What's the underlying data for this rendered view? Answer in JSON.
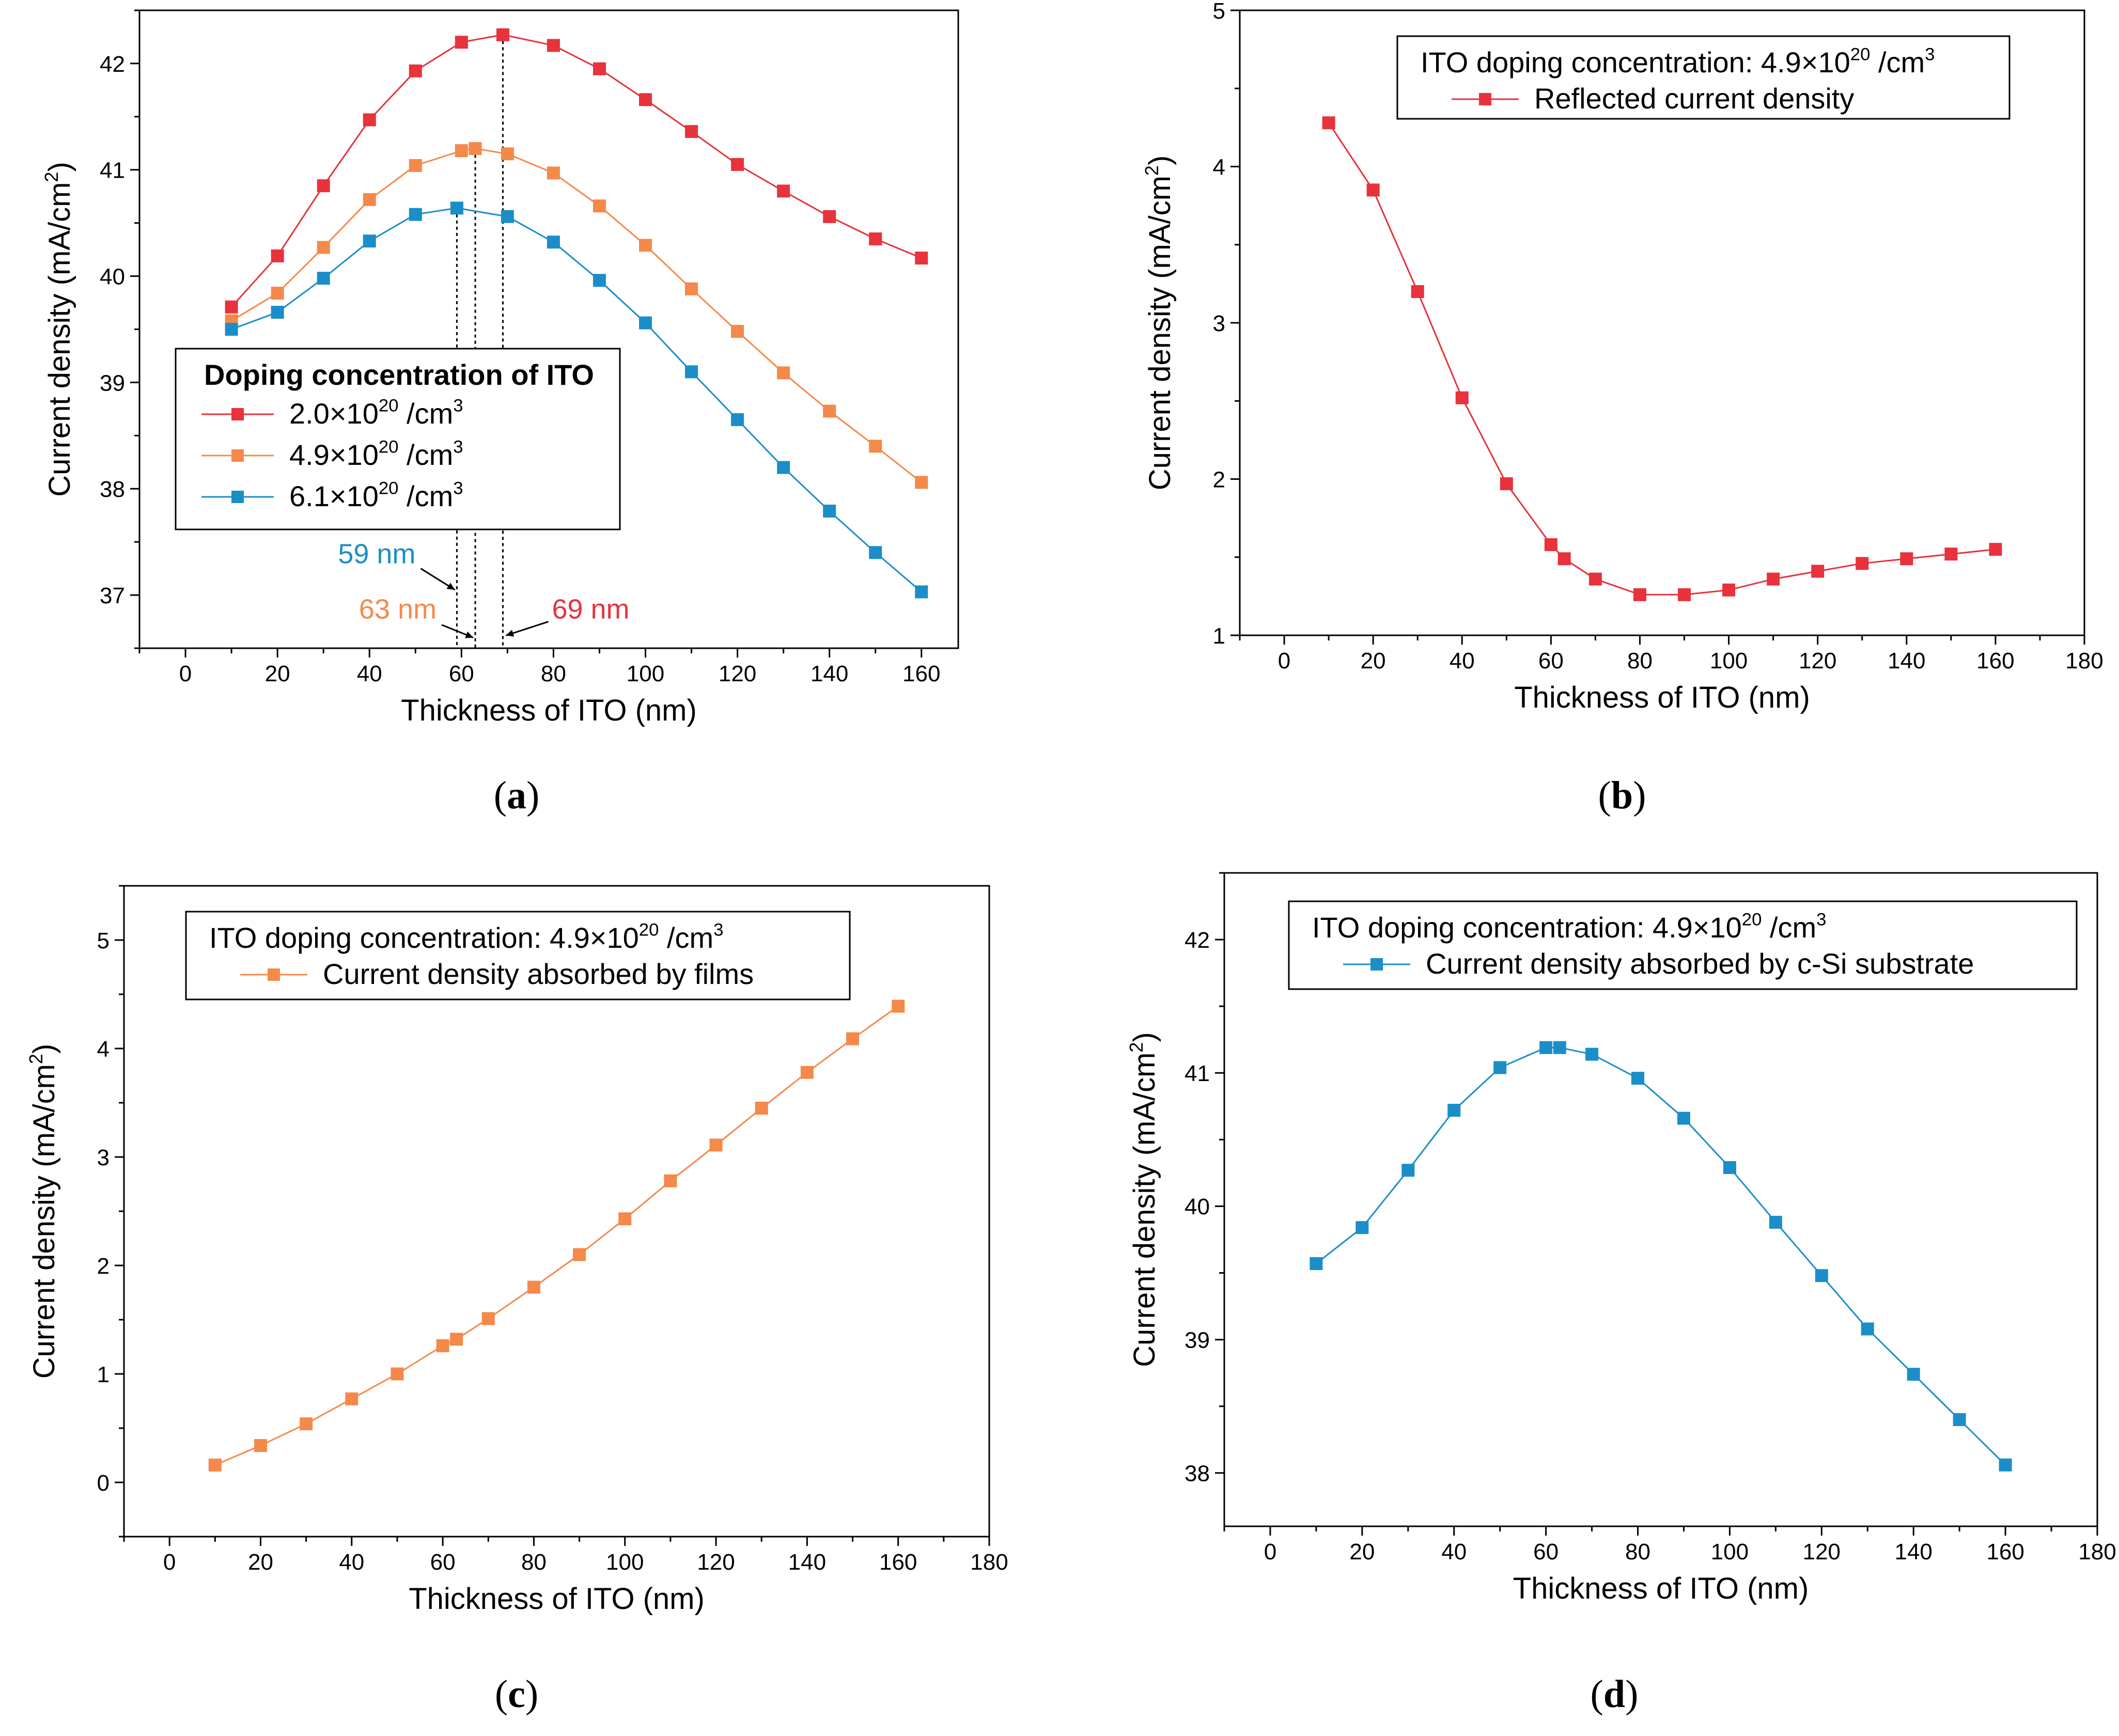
{
  "chart_data": [
    {
      "type": "line",
      "panel_label": "a",
      "xlabel": "Thickness of ITO (nm)",
      "ylabel": "Current density (mA/cm",
      "ylabel_sup": "2",
      "ylabel_close": ")",
      "xlim": [
        -10,
        168
      ],
      "ylim": [
        36.5,
        42.5
      ],
      "xticks": [
        0,
        20,
        40,
        60,
        80,
        100,
        120,
        140,
        160
      ],
      "yticks": [
        37,
        38,
        39,
        40,
        41,
        42
      ],
      "legend_title": "Doping concentration of ITO",
      "x": [
        10,
        20,
        30,
        40,
        50,
        60,
        69,
        80,
        90,
        100,
        110,
        120,
        130,
        140,
        150,
        160
      ],
      "series": [
        {
          "name": "2.0×10²⁰ /cm³",
          "legend_base": "2.0×10",
          "legend_exp": "20",
          "legend_unit": " /cm",
          "legend_unit_exp": "3",
          "color": "#e8323c",
          "x": [
            10,
            20,
            30,
            40,
            50,
            60,
            69,
            80,
            90,
            100,
            110,
            120,
            130,
            140,
            150,
            160
          ],
          "values": [
            39.71,
            40.19,
            40.85,
            41.47,
            41.93,
            42.2,
            42.27,
            42.17,
            41.95,
            41.66,
            41.36,
            41.05,
            40.8,
            40.56,
            40.35,
            40.17
          ]
        },
        {
          "name": "4.9×10²⁰ /cm³",
          "legend_base": "4.9×10",
          "legend_exp": "20",
          "legend_unit": " /cm",
          "legend_unit_exp": "3",
          "color": "#f5894a",
          "x": [
            10,
            20,
            30,
            40,
            50,
            60,
            63,
            70,
            80,
            90,
            100,
            110,
            120,
            130,
            140,
            150,
            160
          ],
          "values": [
            39.58,
            39.84,
            40.27,
            40.72,
            41.04,
            41.18,
            41.2,
            41.15,
            40.97,
            40.66,
            40.29,
            39.88,
            39.48,
            39.09,
            38.73,
            38.4,
            38.06
          ]
        },
        {
          "name": "6.1×10²⁰ /cm³",
          "legend_base": "6.1×10",
          "legend_exp": "20",
          "legend_unit": " /cm",
          "legend_unit_exp": "3",
          "color": "#1b8ec9",
          "x": [
            10,
            20,
            30,
            40,
            50,
            59,
            70,
            80,
            90,
            100,
            110,
            120,
            130,
            140,
            150,
            160
          ],
          "values": [
            39.5,
            39.66,
            39.98,
            40.33,
            40.58,
            40.64,
            40.56,
            40.32,
            39.96,
            39.56,
            39.1,
            38.65,
            38.2,
            37.79,
            37.4,
            37.03
          ]
        }
      ],
      "annotations": [
        {
          "text": "59 nm",
          "x": 59,
          "color": "#1b8ec9"
        },
        {
          "text": "63 nm",
          "x": 63,
          "color": "#f5894a"
        },
        {
          "text": "69 nm",
          "x": 69,
          "color": "#e8323c"
        }
      ]
    },
    {
      "type": "line",
      "panel_label": "b",
      "xlabel": "Thickness of ITO (nm)",
      "ylabel": "Current density (mA/cm",
      "ylabel_sup": "2",
      "ylabel_close": ")",
      "xlim": [
        -10,
        180
      ],
      "ylim": [
        1,
        5
      ],
      "xticks": [
        0,
        20,
        40,
        60,
        80,
        100,
        120,
        140,
        160,
        180
      ],
      "yticks": [
        1,
        2,
        3,
        4,
        5
      ],
      "legend_title": "ITO doping concentration: 4.9×10²⁰ /cm³",
      "legend_title_base": "ITO doping concentration: 4.9×10",
      "legend_title_exp": "20",
      "legend_title_unit": " /cm",
      "legend_title_unit_exp": "3",
      "series": [
        {
          "name": "Reflected current density",
          "color": "#e8323c",
          "x": [
            10,
            20,
            30,
            40,
            50,
            60,
            63,
            70,
            80,
            90,
            100,
            110,
            120,
            130,
            140,
            150,
            160
          ],
          "values": [
            4.28,
            3.85,
            3.2,
            2.52,
            1.97,
            1.58,
            1.49,
            1.36,
            1.26,
            1.26,
            1.29,
            1.36,
            1.41,
            1.46,
            1.49,
            1.52,
            1.55
          ]
        }
      ]
    },
    {
      "type": "line",
      "panel_label": "c",
      "xlabel": "Thickness of ITO (nm)",
      "ylabel": "Current density (mA/cm",
      "ylabel_sup": "2",
      "ylabel_close": ")",
      "xlim": [
        -10,
        180
      ],
      "ylim": [
        -0.5,
        5.5
      ],
      "xticks": [
        0,
        20,
        40,
        60,
        80,
        100,
        120,
        140,
        160,
        180
      ],
      "yticks": [
        0,
        1,
        2,
        3,
        4,
        5
      ],
      "legend_title": "ITO doping concentration: 4.9×10²⁰ /cm³",
      "legend_title_base": "ITO doping concentration: 4.9×10",
      "legend_title_exp": "20",
      "legend_title_unit": " /cm",
      "legend_title_unit_exp": "3",
      "series": [
        {
          "name": "Current density absorbed by films",
          "color": "#f5894a",
          "x": [
            10,
            20,
            30,
            40,
            50,
            60,
            63,
            70,
            80,
            90,
            100,
            110,
            120,
            130,
            140,
            150,
            160
          ],
          "values": [
            0.16,
            0.34,
            0.54,
            0.77,
            1.0,
            1.26,
            1.32,
            1.51,
            1.8,
            2.1,
            2.43,
            2.78,
            3.11,
            3.45,
            3.78,
            4.09,
            4.39
          ]
        }
      ]
    },
    {
      "type": "line",
      "panel_label": "d",
      "xlabel": "Thickness of ITO (nm)",
      "ylabel": "Current density (mA/cm",
      "ylabel_sup": "2",
      "ylabel_close": ")",
      "xlim": [
        -10,
        180
      ],
      "ylim": [
        37.6,
        42.5
      ],
      "xticks": [
        0,
        20,
        40,
        60,
        80,
        100,
        120,
        140,
        160,
        180
      ],
      "yticks": [
        38,
        39,
        40,
        41,
        42
      ],
      "legend_title": "ITO doping concentration: 4.9×10²⁰ /cm³",
      "legend_title_base": "ITO doping concentration: 4.9×10",
      "legend_title_exp": "20",
      "legend_title_unit": " /cm",
      "legend_title_unit_exp": "3",
      "series": [
        {
          "name": "Current density absorbed by c-Si substrate",
          "color": "#1b8ec9",
          "x": [
            10,
            20,
            30,
            40,
            50,
            60,
            63,
            70,
            80,
            90,
            100,
            110,
            120,
            130,
            140,
            150,
            160
          ],
          "values": [
            39.57,
            39.84,
            40.27,
            40.72,
            41.04,
            41.19,
            41.19,
            41.14,
            40.96,
            40.66,
            40.29,
            39.88,
            39.48,
            39.08,
            38.74,
            38.4,
            38.06
          ]
        }
      ]
    }
  ]
}
